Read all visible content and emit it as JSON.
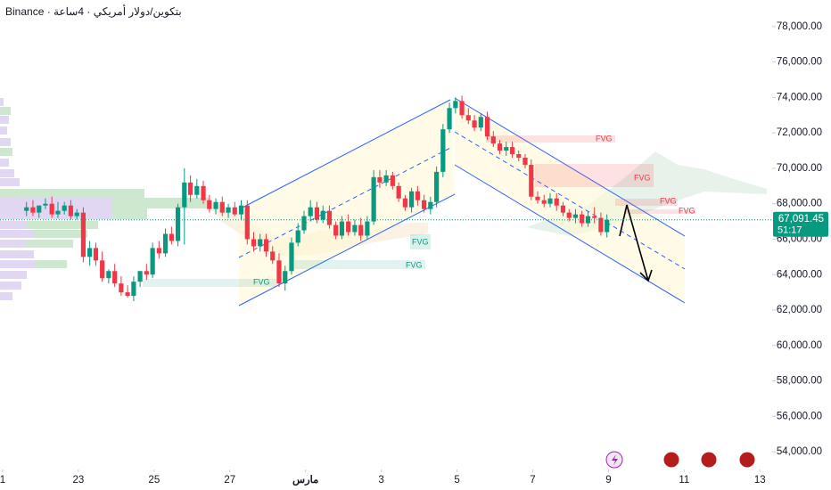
{
  "chart_data": {
    "type": "candlestick",
    "title": "Binance · بتكوين/دولار أمريكي · 4ساعة",
    "up_color": "#089981",
    "down_color": "#f23645",
    "x": [
      0.63,
      0.8,
      0.96,
      1.13,
      1.3,
      1.46,
      1.63,
      1.8,
      1.96,
      2.13,
      2.3,
      2.46,
      2.63,
      2.8,
      2.96,
      3.13,
      3.3,
      3.46,
      3.63,
      3.8,
      3.96,
      4.13,
      4.3,
      4.46,
      4.63,
      4.8,
      4.96,
      5.13,
      5.3,
      5.46,
      5.63,
      5.8,
      5.96,
      6.13,
      6.3,
      6.46,
      6.63,
      6.8,
      6.96,
      7.13,
      7.3,
      7.46,
      7.63,
      7.8,
      7.96,
      8.13,
      8.3,
      8.46,
      8.63,
      8.8,
      8.96,
      9.13,
      9.3,
      9.46,
      9.63,
      9.8,
      9.96,
      10.13,
      10.3,
      10.46,
      10.63,
      10.8,
      10.96,
      11.13,
      11.3,
      11.46,
      11.63,
      11.8,
      11.96,
      12.13,
      12.3,
      12.46,
      12.63,
      12.8,
      12.96,
      13.13,
      13.3,
      13.46,
      13.63,
      13.8,
      13.96,
      14.13,
      14.3,
      14.46,
      14.63,
      14.8,
      14.96,
      15.13,
      15.3,
      15.46,
      15.63,
      15.8,
      15.96
    ],
    "open": [
      67600,
      67800,
      67500,
      67900,
      68000,
      67400,
      67600,
      67900,
      67300,
      67500,
      65000,
      65500,
      64800,
      63800,
      64200,
      63500,
      63000,
      62800,
      63600,
      64200,
      64000,
      65500,
      65200,
      66300,
      65900,
      67800,
      69200,
      68500,
      69000,
      68200,
      67700,
      68100,
      67500,
      67800,
      67400,
      67900,
      66000,
      65600,
      66000,
      65300,
      64800,
      63500,
      64200,
      65800,
      66500,
      67300,
      67800,
      67100,
      67600,
      66800,
      66200,
      67000,
      66400,
      66800,
      66200,
      67000,
      69500,
      69200,
      69600,
      69000,
      68300,
      67800,
      68700,
      68200,
      67700,
      68100,
      69800,
      72200,
      73400,
      73800,
      73000,
      72700,
      72300,
      72900,
      71800,
      71400,
      71000,
      71200,
      70800,
      70600,
      70200,
      68400,
      68200,
      68000,
      68300,
      67900,
      67500,
      67200,
      67400,
      66900,
      67300,
      67200,
      66400
    ],
    "high": [
      68100,
      68200,
      67900,
      68300,
      68400,
      68100,
      68100,
      68200,
      67700,
      67800,
      65900,
      65800,
      65300,
      64300,
      64600,
      63900,
      63400,
      63900,
      64200,
      64600,
      65800,
      65900,
      66600,
      66700,
      68000,
      70000,
      69600,
      69400,
      69300,
      68500,
      68300,
      68400,
      68000,
      68100,
      68200,
      68200,
      66400,
      66300,
      66300,
      65600,
      65200,
      64500,
      66100,
      66900,
      67600,
      68200,
      68100,
      67900,
      67900,
      67000,
      67300,
      67400,
      67100,
      67200,
      67300,
      69900,
      69900,
      69900,
      69800,
      69200,
      68500,
      68900,
      69000,
      68500,
      68400,
      70100,
      72500,
      73700,
      74000,
      74100,
      73400,
      73000,
      73100,
      73200,
      72100,
      71600,
      71500,
      71500,
      71000,
      70800,
      70500,
      68700,
      68500,
      68600,
      68600,
      68100,
      67700,
      67700,
      67600,
      67600,
      67800,
      67500,
      67400
    ],
    "low": [
      67300,
      67300,
      67200,
      67700,
      67200,
      67200,
      67400,
      67100,
      67100,
      64700,
      64500,
      64500,
      63600,
      63500,
      63300,
      62800,
      62700,
      62500,
      63300,
      63700,
      63800,
      64900,
      65000,
      65700,
      65600,
      65700,
      68100,
      68300,
      68000,
      67500,
      67400,
      67300,
      67200,
      67300,
      67100,
      65700,
      65300,
      65300,
      65000,
      64600,
      63300,
      63100,
      64000,
      65600,
      66300,
      67000,
      66900,
      66900,
      66600,
      66000,
      66000,
      66200,
      66200,
      65900,
      66000,
      66800,
      68900,
      69000,
      68800,
      68100,
      67600,
      67500,
      67900,
      67500,
      67400,
      67800,
      69500,
      72000,
      73100,
      72800,
      72500,
      72100,
      72100,
      71600,
      71200,
      70800,
      70700,
      70600,
      70400,
      70000,
      68200,
      68000,
      67800,
      67800,
      67600,
      67300,
      67000,
      66900,
      66700,
      66700,
      66900,
      66200,
      66100
    ],
    "close": [
      67800,
      67500,
      67900,
      68000,
      67400,
      67600,
      67900,
      67300,
      67500,
      65000,
      65500,
      64800,
      63800,
      64200,
      63500,
      63000,
      62800,
      63600,
      64200,
      64000,
      65500,
      65200,
      66300,
      65900,
      67800,
      69200,
      68500,
      69000,
      68200,
      67700,
      68100,
      67500,
      67800,
      67400,
      67900,
      66000,
      65600,
      66000,
      65300,
      64800,
      63500,
      64200,
      65800,
      66500,
      67300,
      67800,
      67100,
      67600,
      66800,
      66200,
      67000,
      66400,
      66800,
      66200,
      67000,
      69500,
      69200,
      69600,
      69000,
      68300,
      67800,
      68700,
      68200,
      67700,
      68100,
      69800,
      72200,
      73400,
      73800,
      73000,
      72700,
      72300,
      72900,
      71800,
      71400,
      71000,
      71200,
      70800,
      70600,
      70200,
      68400,
      68200,
      68000,
      68300,
      67900,
      67500,
      67200,
      67400,
      66900,
      67300,
      67200,
      66400,
      67091.45
    ],
    "xlim": [
      -0.07,
      20.3
    ],
    "xticks": [
      {
        "value": 0,
        "label": "1"
      },
      {
        "value": 2,
        "label": "23"
      },
      {
        "value": 4,
        "label": "25"
      },
      {
        "value": 6,
        "label": "27"
      },
      {
        "value": 8,
        "label": "مارس"
      },
      {
        "value": 10,
        "label": "3"
      },
      {
        "value": 12,
        "label": "5"
      },
      {
        "value": 14,
        "label": "7"
      },
      {
        "value": 16,
        "label": "9"
      },
      {
        "value": 18,
        "label": "11"
      },
      {
        "value": 20,
        "label": "13"
      }
    ],
    "ylim": [
      53100,
      79500
    ],
    "yticks": [
      {
        "value": 54000,
        "label": "54,000.00"
      },
      {
        "value": 56000,
        "label": "56,000.00"
      },
      {
        "value": 58000,
        "label": "58,000.00"
      },
      {
        "value": 60000,
        "label": "60,000.00"
      },
      {
        "value": 62000,
        "label": "62,000.00"
      },
      {
        "value": 64000,
        "label": "64,000.00"
      },
      {
        "value": 66000,
        "label": "66,000.00"
      },
      {
        "value": 68000,
        "label": "68,000.00"
      },
      {
        "value": 70000,
        "label": "70,000.00"
      },
      {
        "value": 72000,
        "label": "72,000.00"
      },
      {
        "value": 74000,
        "label": "74,000.00"
      },
      {
        "value": 76000,
        "label": "76,000.00"
      },
      {
        "value": 78000,
        "label": "78,000.00"
      }
    ],
    "last_price": {
      "value": 67091.45,
      "label": "67,091.45"
    },
    "countdown": "51:17",
    "annotations": [
      "FVG",
      "FVG",
      "FVG",
      "FVG",
      "FVG",
      "FVG",
      "FVG"
    ]
  }
}
